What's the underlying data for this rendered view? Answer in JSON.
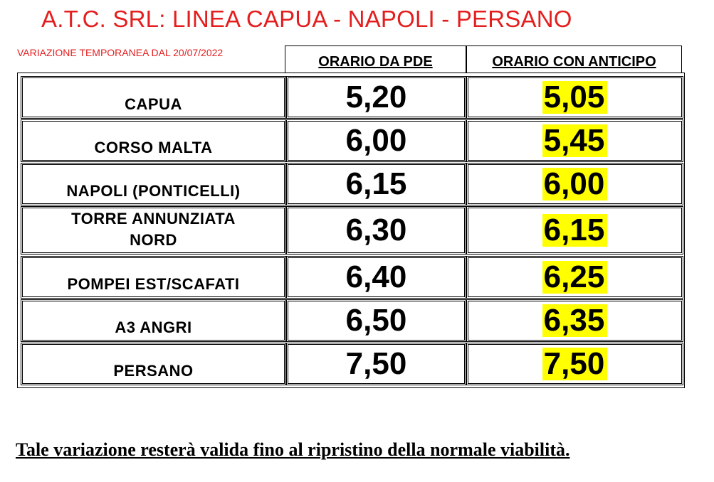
{
  "title": "A.T.C. SRL: LINEA CAPUA - NAPOLI - PERSANO",
  "subtitle": "VARIAZIONE TEMPORANEA DAL 20/07/2022",
  "columns": {
    "pde": "ORARIO DA PDE",
    "anticipo": "ORARIO CON ANTICIPO"
  },
  "rows": [
    {
      "stop": "CAPUA",
      "pde": "5,20",
      "anticipo": "5,05"
    },
    {
      "stop": "CORSO MALTA",
      "pde": "6,00",
      "anticipo": "5,45"
    },
    {
      "stop": "NAPOLI (PONTICELLI)",
      "pde": "6,15",
      "anticipo": "6,00"
    },
    {
      "stop": "TORRE ANNUNZIATA NORD",
      "pde": "6,30",
      "anticipo": "6,15"
    },
    {
      "stop": "POMPEI EST/SCAFATI",
      "pde": "6,40",
      "anticipo": "6,25"
    },
    {
      "stop": "A3 ANGRI",
      "pde": "6,50",
      "anticipo": "6,35"
    },
    {
      "stop": "PERSANO",
      "pde": "7,50",
      "anticipo": "7,50"
    }
  ],
  "footer": "Tale variazione resterà valida fino al ripristino della normale viabilità.",
  "colors": {
    "title": "#e41e1e",
    "highlight": "#ffff00"
  }
}
